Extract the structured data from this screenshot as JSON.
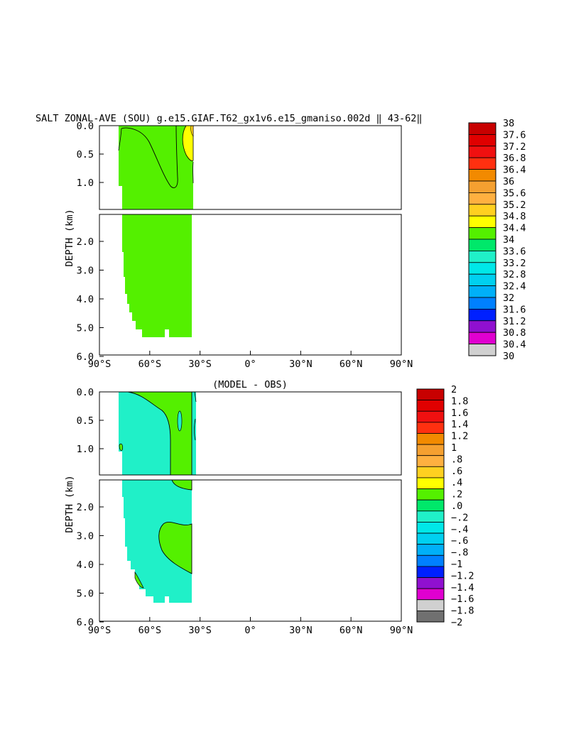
{
  "page_title": "SALT ZONAL-AVE (SOU) g.e15.GIAF.T62_gx1v6.e15_gmaniso.002d ‖ 43-62‖",
  "chart_data": [
    {
      "type": "heatmap",
      "title": "SALT ZONAL-AVE (SOU) g.e15.GIAF.T62_gx1v6.e15_gmaniso.002d ‖ 43-62‖",
      "ylabel": "DEPTH (km)",
      "xlim": [
        -90,
        90
      ],
      "y_upper_ticks": [
        "0.0",
        "0.5",
        "1.0"
      ],
      "y_lower_ticks": [
        "2.0",
        "3.0",
        "4.0",
        "5.0",
        "6.0"
      ],
      "x_ticks": [
        "90°S",
        "60°S",
        "30°S",
        "0°",
        "30°N",
        "60°N",
        "90°N"
      ],
      "colorbar": {
        "labels": [
          "38",
          "37.6",
          "37.2",
          "36.8",
          "36.4",
          "36",
          "35.6",
          "35.2",
          "34.8",
          "34.4",
          "34",
          "33.6",
          "33.2",
          "32.8",
          "32.4",
          "32",
          "31.6",
          "31.2",
          "30.8",
          "30.4",
          "30"
        ],
        "colors": [
          "#c80000",
          "#e00000",
          "#f01010",
          "#ff3010",
          "#f28a00",
          "#f5a030",
          "#ffb040",
          "#ffd020",
          "#ffff00",
          "#54f000",
          "#00e86a",
          "#20f0c8",
          "#00e8e8",
          "#00d0f0",
          "#00b0f8",
          "#0080ff",
          "#0020ff",
          "#9010d0",
          "#e000d0",
          "#d0d0d0"
        ]
      }
    },
    {
      "type": "heatmap",
      "title": "(MODEL - OBS)",
      "ylabel": "DEPTH (km)",
      "xlim": [
        -90,
        90
      ],
      "y_upper_ticks": [
        "0.0",
        "0.5",
        "1.0"
      ],
      "y_lower_ticks": [
        "2.0",
        "3.0",
        "4.0",
        "5.0",
        "6.0"
      ],
      "x_ticks": [
        "90°S",
        "60°S",
        "30°S",
        "0°",
        "30°N",
        "60°N",
        "90°N"
      ],
      "colorbar": {
        "labels": [
          "2",
          "1.8",
          "1.6",
          "1.4",
          "1.2",
          "1",
          ".8",
          ".6",
          ".4",
          ".2",
          ".0",
          "−.2",
          "−.4",
          "−.6",
          "−.8",
          "−1",
          "−1.2",
          "−1.4",
          "−1.6",
          "−1.8",
          "−2"
        ],
        "colors": [
          "#c80000",
          "#e00000",
          "#f01010",
          "#ff3010",
          "#f28a00",
          "#f5a030",
          "#ffb040",
          "#ffd020",
          "#ffff00",
          "#54f000",
          "#00e86a",
          "#20f0c8",
          "#00e8e8",
          "#00d0f0",
          "#00b0f8",
          "#0080ff",
          "#0020ff",
          "#9010d0",
          "#e000d0",
          "#d0d0d0",
          "#707070"
        ]
      }
    }
  ]
}
